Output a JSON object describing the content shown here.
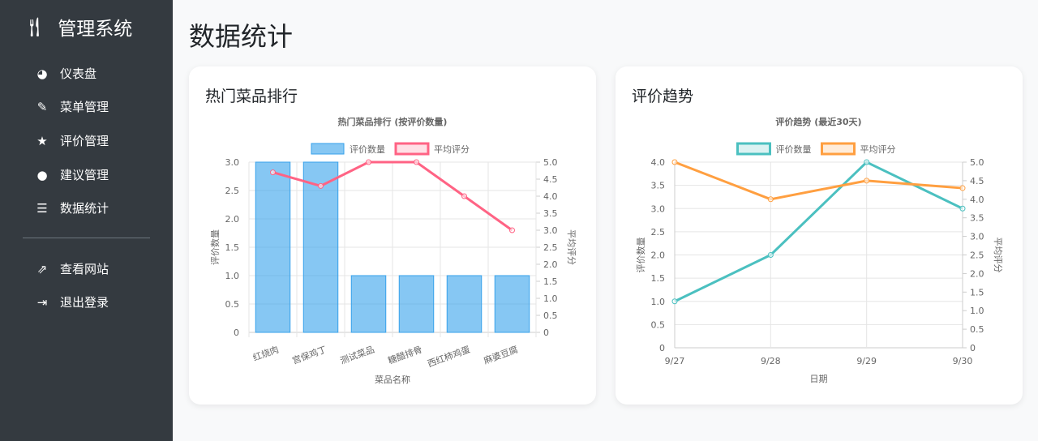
{
  "sidebar": {
    "brand": "管理系统",
    "brand_icon": "utensils-icon",
    "items": [
      {
        "label": "仪表盘",
        "icon": "◕"
      },
      {
        "label": "菜单管理",
        "icon": "✎"
      },
      {
        "label": "评价管理",
        "icon": "★"
      },
      {
        "label": "建议管理",
        "icon": "●"
      },
      {
        "label": "数据统计",
        "icon": "☰"
      }
    ],
    "links": [
      {
        "label": "查看网站",
        "icon": "⇗"
      },
      {
        "label": "退出登录",
        "icon": "⇥"
      }
    ]
  },
  "page_title": "数据统计",
  "chart_data": [
    {
      "card_title": "热门菜品排行",
      "type": "bar+line",
      "title": "热门菜品排行 (按评价数量)",
      "xlabel": "菜品名称",
      "ylabel": "评价数量",
      "y2label": "平均评分",
      "categories": [
        "红烧肉",
        "宫保鸡丁",
        "测试菜品",
        "糖醋排骨",
        "西红柿鸡蛋",
        "麻婆豆腐"
      ],
      "series": [
        {
          "name": "评价数量",
          "type": "bar",
          "axis": "left",
          "values": [
            3,
            3,
            1,
            1,
            1,
            1
          ],
          "color": "#36a2eb"
        },
        {
          "name": "平均评分",
          "type": "line",
          "axis": "right",
          "values": [
            4.7,
            4.3,
            5,
            5,
            4,
            3
          ],
          "color": "#ff6384"
        }
      ],
      "ylim": [
        0,
        3
      ],
      "y2lim": [
        0,
        5
      ],
      "yticks": [
        "0",
        "0.5",
        "1.0",
        "1.5",
        "2.0",
        "2.5",
        "3.0"
      ],
      "y2ticks": [
        "0",
        "0.5",
        "1.0",
        "1.5",
        "2.0",
        "2.5",
        "3.0",
        "3.5",
        "4.0",
        "4.5",
        "5.0"
      ],
      "grid": true,
      "legend": "top"
    },
    {
      "card_title": "评价趋势",
      "type": "line",
      "title": "评价趋势 (最近30天)",
      "xlabel": "日期",
      "ylabel": "评价数量",
      "y2label": "平均评分",
      "categories": [
        "9/27",
        "9/28",
        "9/29",
        "9/30"
      ],
      "series": [
        {
          "name": "评价数量",
          "type": "line",
          "axis": "left",
          "values": [
            1,
            2,
            4,
            3
          ],
          "color": "#4bc0c0"
        },
        {
          "name": "平均评分",
          "type": "line",
          "axis": "right",
          "values": [
            5,
            4,
            4.5,
            4.3
          ],
          "color": "#ff9f40"
        }
      ],
      "ylim": [
        0,
        4
      ],
      "y2lim": [
        0,
        5
      ],
      "yticks": [
        "0",
        "0.5",
        "1.0",
        "1.5",
        "2.0",
        "2.5",
        "3.0",
        "3.5",
        "4.0"
      ],
      "y2ticks": [
        "0",
        "0.5",
        "1.0",
        "1.5",
        "2.0",
        "2.5",
        "3.0",
        "3.5",
        "4.0",
        "4.5",
        "5.0"
      ],
      "grid": true,
      "legend": "top"
    }
  ]
}
